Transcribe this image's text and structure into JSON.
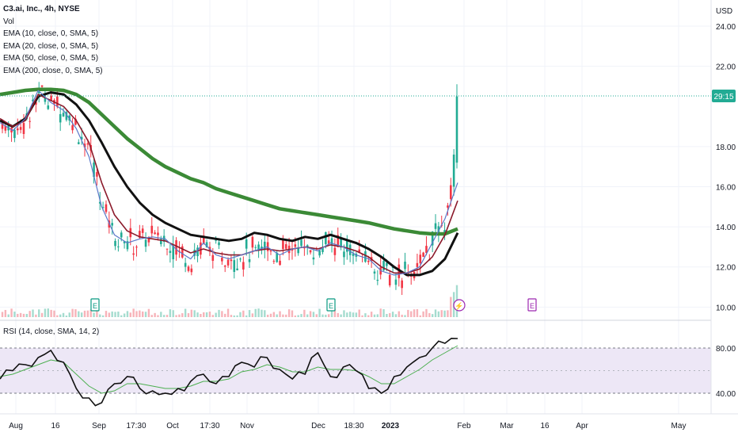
{
  "header": {
    "title": "C3.ai, Inc., 4h, NYSE",
    "currency": "USD",
    "legend": [
      "Vol",
      "EMA (10, close, 0, SMA, 5)",
      "EMA (20, close, 0, SMA, 5)",
      "EMA (50, close, 0, SMA, 5)",
      "EMA (200, close, 0, SMA, 5)"
    ],
    "rsi_label": "RSI (14, close, SMA, 14, 2)"
  },
  "price_tag": {
    "text": "29:15",
    "color": "#22ab94"
  },
  "colors": {
    "up": "#22ab94",
    "down": "#f23645",
    "ema10": "#5b78c9",
    "ema20": "#8b1a2b",
    "ema50": "#111111",
    "ema200": "#3b8a36",
    "rsi": "#111111",
    "rsi_ma": "#4caf50",
    "rsi_band": "#ede7f6"
  },
  "events": [
    {
      "id": "earnings-1",
      "label": "E",
      "date": "Sep 1",
      "color": "#089981"
    },
    {
      "id": "earnings-2",
      "label": "E",
      "date": "Dec 7",
      "color": "#089981"
    },
    {
      "id": "split-div",
      "label": "⚡",
      "date": "Jan 30",
      "color": "#9c27b0"
    },
    {
      "id": "earnings-3",
      "label": "E",
      "date": "Mar 2",
      "color": "#9c27b0"
    }
  ],
  "chart_data": [
    {
      "type": "candlestick",
      "title": "C3.ai, Inc., 4h, NYSE",
      "x_axis_labels": [
        "Aug",
        "16",
        "Sep",
        "17:30",
        "Oct",
        "17:30",
        "Nov",
        "Dec",
        "18:30",
        "2023",
        "Feb",
        "Mar",
        "16",
        "Apr",
        "May"
      ],
      "y_axis_labels": [
        "10.00",
        "12.00",
        "14.00",
        "16.00",
        "18.00",
        "22.00",
        "24.00"
      ],
      "ylim": [
        9.5,
        24.2
      ],
      "last_price_label": "29:15",
      "series": [
        {
          "name": "EMA (10, close, 0, SMA, 5)",
          "values": [
            19.2,
            18.8,
            19.4,
            20.8,
            20.2,
            19.8,
            18.9,
            17.5,
            15.0,
            13.6,
            13.2,
            13.4,
            13.5,
            13.4,
            12.8,
            12.4,
            13.2,
            12.6,
            12.4,
            12.6,
            12.8,
            13.0,
            12.6,
            12.9,
            13.0,
            12.8,
            13.2,
            13.0,
            12.6,
            12.4,
            11.8,
            11.6,
            11.7,
            12.0,
            13.2,
            14.4,
            16.2
          ]
        },
        {
          "name": "EMA (20, close, 0, SMA, 5)",
          "values": [
            19.4,
            19.0,
            19.3,
            20.6,
            20.3,
            20.0,
            19.3,
            18.2,
            16.2,
            14.6,
            13.8,
            13.5,
            13.4,
            13.3,
            13.0,
            12.7,
            12.9,
            12.7,
            12.6,
            12.6,
            12.8,
            12.9,
            12.8,
            12.9,
            13.0,
            12.9,
            13.1,
            13.0,
            12.8,
            12.5,
            12.0,
            11.7,
            11.7,
            11.9,
            12.5,
            13.6,
            15.3
          ]
        },
        {
          "name": "EMA (50, close, 0, SMA, 5)",
          "values": [
            19.3,
            19.0,
            19.4,
            20.5,
            20.7,
            20.6,
            20.1,
            19.3,
            18.2,
            17.0,
            16.0,
            15.2,
            14.6,
            14.2,
            13.9,
            13.6,
            13.5,
            13.4,
            13.3,
            13.4,
            13.7,
            13.6,
            13.4,
            13.3,
            13.5,
            13.4,
            13.6,
            13.4,
            13.2,
            12.9,
            12.5,
            12.0,
            11.6,
            11.6,
            11.8,
            12.4,
            13.7
          ]
        },
        {
          "name": "EMA (200, close, 0, SMA, 5)",
          "values": [
            20.6,
            20.7,
            20.8,
            20.85,
            20.85,
            20.8,
            20.6,
            20.2,
            19.6,
            19.0,
            18.4,
            17.9,
            17.4,
            17.0,
            16.7,
            16.4,
            16.2,
            15.9,
            15.7,
            15.5,
            15.3,
            15.1,
            14.9,
            14.8,
            14.7,
            14.6,
            14.5,
            14.4,
            14.3,
            14.2,
            14.05,
            13.9,
            13.8,
            13.7,
            13.65,
            13.65,
            13.9
          ]
        }
      ]
    },
    {
      "type": "line",
      "title": "RSI (14, close, SMA, 14, 2)",
      "y_axis_labels": [
        "40.00",
        "80.00"
      ],
      "ylim": [
        30,
        90
      ],
      "bands": [
        30,
        70
      ],
      "series": [
        {
          "name": "RSI",
          "values": [
            48,
            55,
            60,
            66,
            72,
            62,
            40,
            32,
            28,
            44,
            50,
            40,
            38,
            36,
            40,
            46,
            52,
            44,
            50,
            62,
            58,
            66,
            56,
            48,
            52,
            70,
            50,
            58,
            55,
            40,
            36,
            50,
            58,
            66,
            74,
            78,
            82
          ]
        },
        {
          "name": "RSI SMA",
          "values": [
            50,
            52,
            56,
            60,
            64,
            62,
            52,
            42,
            36,
            38,
            44,
            44,
            42,
            40,
            40,
            42,
            46,
            46,
            48,
            54,
            56,
            60,
            58,
            54,
            54,
            58,
            56,
            56,
            55,
            50,
            44,
            44,
            50,
            56,
            64,
            70,
            76
          ]
        }
      ]
    }
  ]
}
